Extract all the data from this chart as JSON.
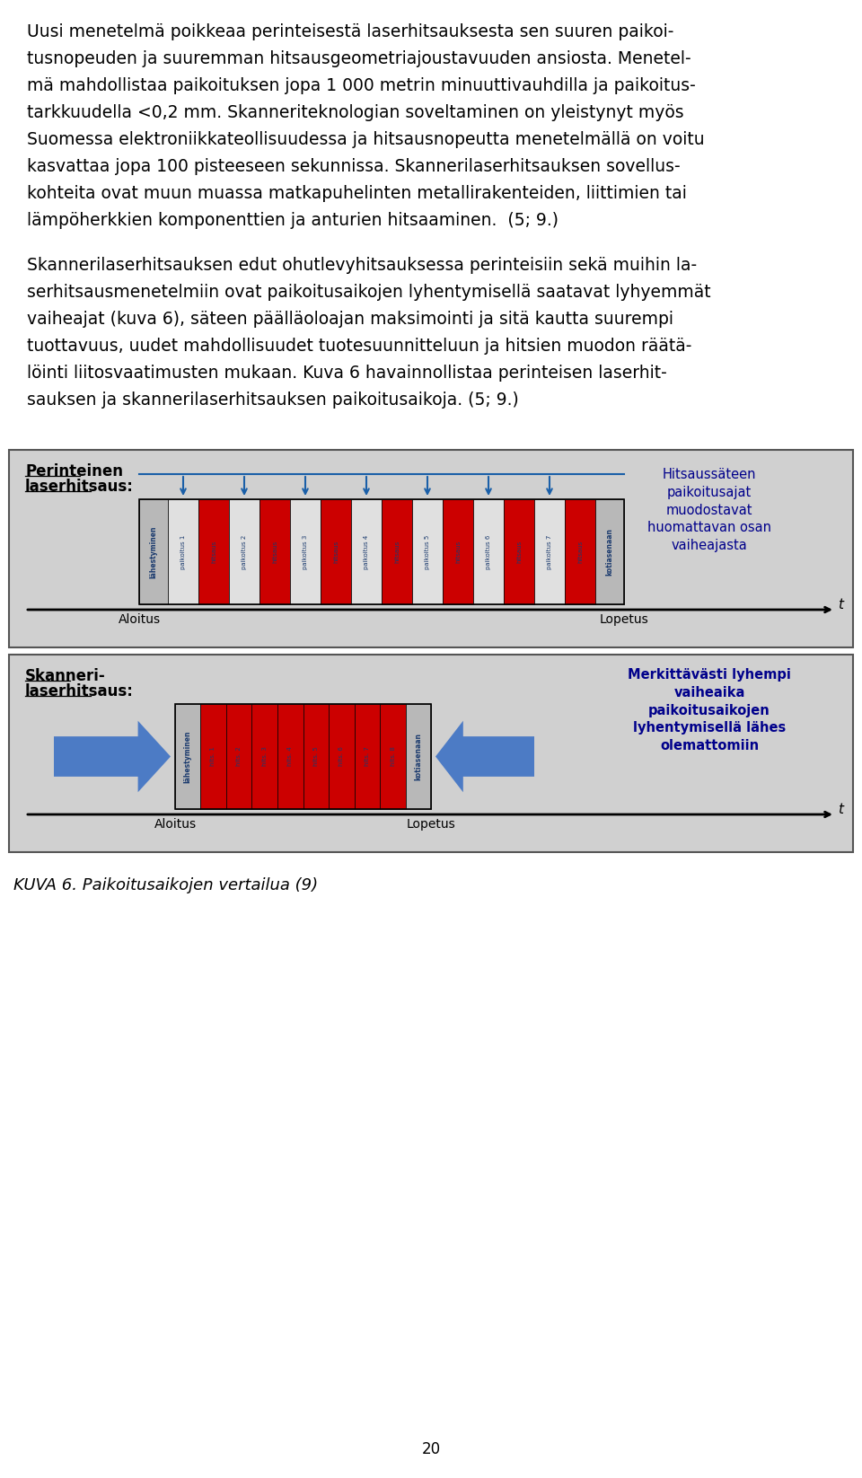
{
  "page_number": "20",
  "para1_lines": [
    "Uusi menetelmä poikkeaa perinteisestä laserhitsauksesta sen suuren paikoi-",
    "tusnopeuden ja suuremman hitsausgeometriajoustavuuden ansiosta. Menetel-",
    "mä mahdollistaa paikoituksen jopa 1 000 metrin minuuttivauhdilla ja paikoitus-",
    "tarkkuudella <0,2 mm. Skanneriteknologian soveltaminen on yleistynyt myös",
    "Suomessa elektroniikkateollisuudessa ja hitsausnopeutta menetelmällä on voitu",
    "kasvattaa jopa 100 pisteeseen sekunnissa. Skannerilaserhitsauksen sovellus-",
    "kohteita ovat muun muassa matkapuhelinten metallirakenteiden, liittimien tai",
    "lämpöherkkien komponenttien ja anturien hitsaaminen.  (5; 9.)"
  ],
  "para2_lines": [
    "Skannerilaserhitsauksen edut ohutlevyhitsauksessa perinteisiin sekä muihin la-",
    "serhitsausmenetelmiin ovat paikoitusaikojen lyhentymisellä saatavat lyhyemmät",
    "vaiheajat (kuva 6), säteen päälläoloajan maksimointi ja sitä kautta suurempi",
    "tuottavuus, uudet mahdollisuudet tuotesuunnitteluun ja hitsien muodon räätä-",
    "löinti liitosvaatimusten mukaan. Kuva 6 havainnollistaa perinteisen laserhit-",
    "sauksen ja skannerilaserhitsauksen paikoitusaikoja. (5; 9.)"
  ],
  "diagram_title1_line1": "Perinteinen",
  "diagram_title1_line2": "laserhitsaus:",
  "diagram_title2_line1": "Skanneri-",
  "diagram_title2_line2": "laserhitsaus:",
  "annotation1": "Hitsaussäteen\npaikoitusajat\nmuodostavat\nhuomattavan osan\nvaiheajasta",
  "annotation2": "Merkittävästi lyhempi\nvaiheaika\npaikoitusaikojen\nlyhentymisellä lähes\nolemattomiin",
  "label_aloitus": "Aloitus",
  "label_lopetus": "Lopetus",
  "label_t": "t",
  "caption": "KUVA 6. Paikoitusaikojen vertailua (9)",
  "bg_color": "#d0d0d0",
  "red_color": "#cc0000",
  "blue_arrow_color": "#1a5fa8",
  "dark_blue_annotation": "#00008b",
  "seg_gray": "#b8b8b8",
  "seg_light": "#e0e0e0",
  "border_color": "#555555",
  "blue_wide": "#3a6fc4"
}
